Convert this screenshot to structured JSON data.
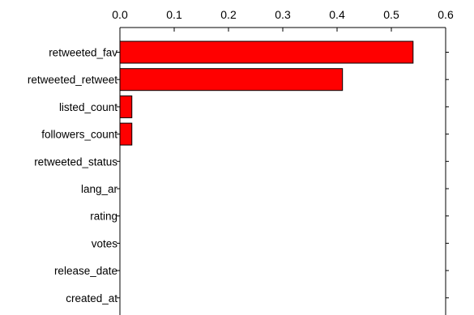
{
  "chart_data": {
    "type": "bar",
    "orientation": "horizontal",
    "x_axis_position": "top",
    "categories": [
      "retweeted_fav",
      "retweeted_retweet",
      "listed_count",
      "followers_count",
      "retweeted_status",
      "lang_ar",
      "rating",
      "votes",
      "release_date",
      "created_at"
    ],
    "values": [
      0.54,
      0.41,
      0.022,
      0.022,
      0,
      0,
      0,
      0,
      0,
      0
    ],
    "xlim": [
      0,
      0.6
    ],
    "x_ticks": [
      "0.0",
      "0.1",
      "0.2",
      "0.3",
      "0.4",
      "0.5",
      "0.6"
    ],
    "bar_color": "#ff0000",
    "bar_edge_color": "#000000",
    "grid": false,
    "legend": "none"
  }
}
